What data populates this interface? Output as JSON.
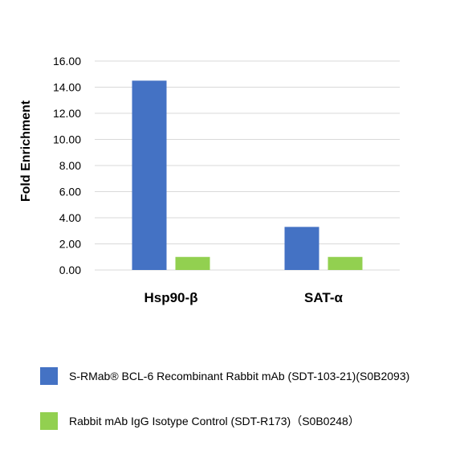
{
  "chart_data": {
    "type": "bar",
    "categories": [
      "Hsp90-β",
      "SAT-α"
    ],
    "series": [
      {
        "name": "S-RMab® BCL-6 Recombinant Rabbit mAb (SDT-103-21)(S0B2093)",
        "values": [
          14.5,
          3.3
        ],
        "color": "#4472c4"
      },
      {
        "name": "Rabbit mAb IgG Isotype Control (SDT-R173)（S0B0248）",
        "values": [
          1.0,
          1.0
        ],
        "color": "#92d050"
      }
    ],
    "ylabel": "Fold Enrichment",
    "xlabel": "",
    "ylim": [
      0,
      16
    ],
    "yticks": [
      "0.00",
      "2.00",
      "4.00",
      "6.00",
      "8.00",
      "10.00",
      "12.00",
      "14.00",
      "16.00"
    ],
    "grid": true,
    "legend_position": "bottom"
  }
}
